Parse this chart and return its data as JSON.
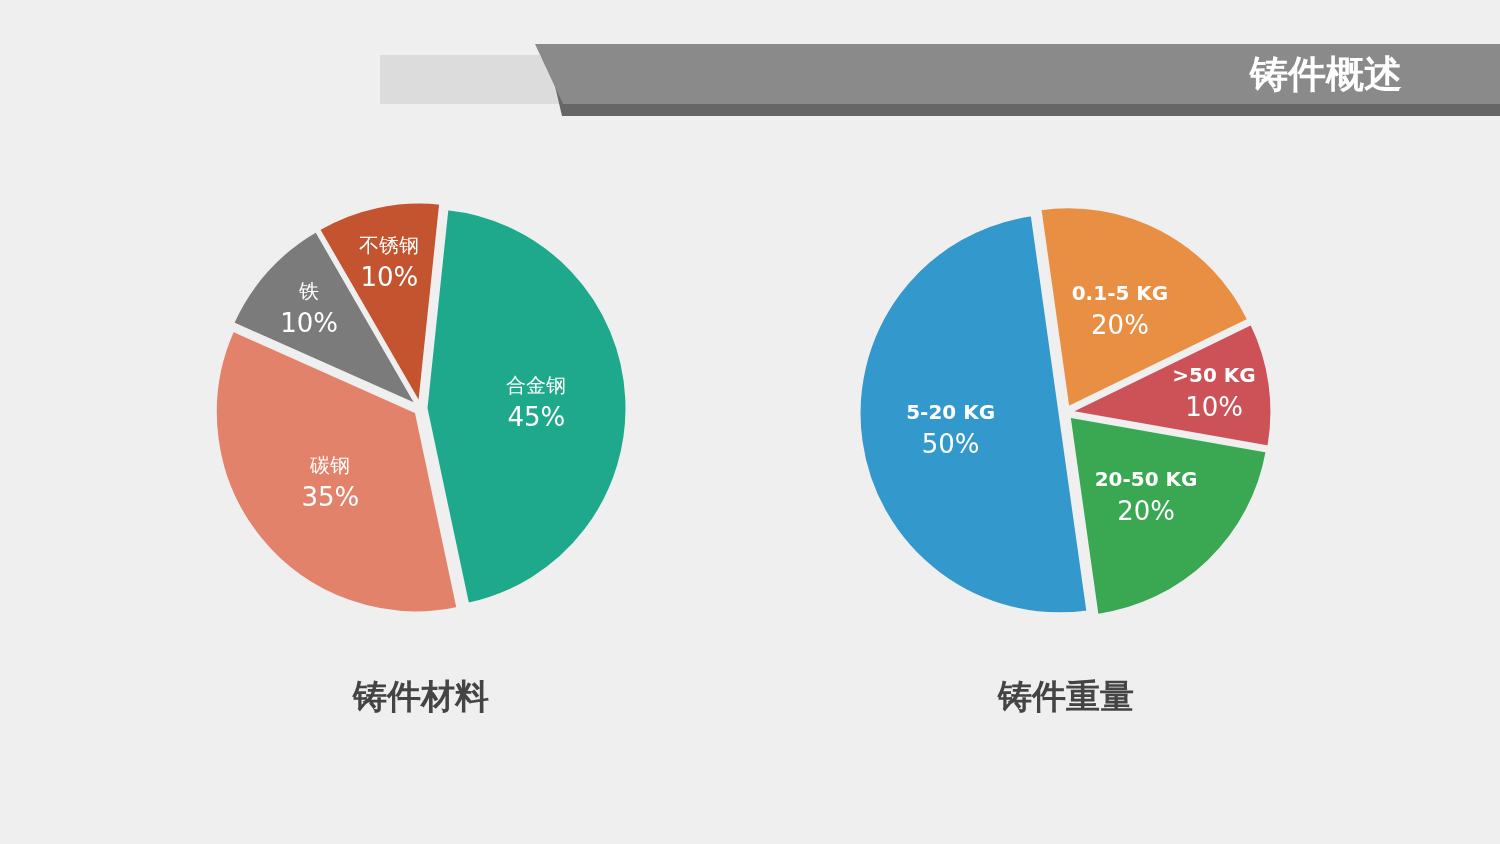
{
  "chart_data": [
    {
      "type": "pie",
      "title": "铸件材料",
      "categories": [
        "合金钢",
        "碳钢",
        "铁",
        "不锈钢"
      ],
      "values": [
        45,
        35,
        10,
        10
      ],
      "value_labels": [
        "45%",
        "35%",
        "10%",
        "10%"
      ],
      "colors": [
        "#1ea98d",
        "#e3826a",
        "#7b7b7b",
        "#c4532f"
      ],
      "annotations": [
        "铸件概述"
      ]
    },
    {
      "type": "pie",
      "title": "铸件重量",
      "categories": [
        "0.1-5 KG",
        ">50 KG",
        "20-50 KG",
        "5-20 KG"
      ],
      "values": [
        20,
        10,
        20,
        50
      ],
      "value_labels": [
        "20%",
        "10%",
        "20%",
        "50%"
      ],
      "colors": [
        "#e98f44",
        "#cc5258",
        "#3aa852",
        "#3398cc"
      ]
    }
  ]
}
